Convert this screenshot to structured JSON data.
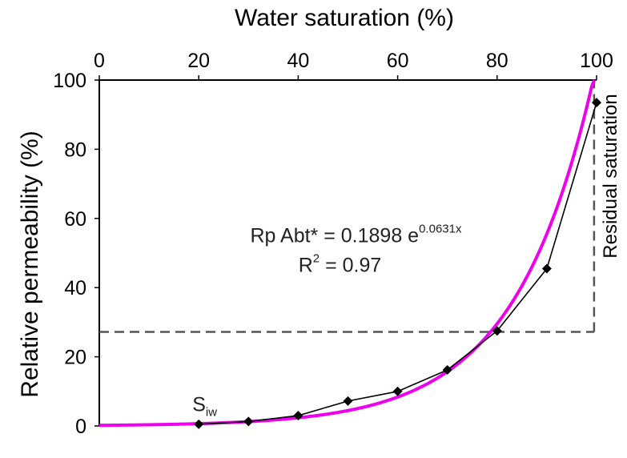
{
  "chart_data": {
    "type": "scatter",
    "title": "",
    "xlabel": "Water saturation (%)",
    "ylabel": "Relative permeability (%)",
    "x_axis_position": "top",
    "xlim": [
      0,
      100
    ],
    "ylim": [
      0,
      100
    ],
    "xticks": [
      "0",
      "20",
      "40",
      "60",
      "80",
      "100"
    ],
    "yticks": [
      "0",
      "20",
      "40",
      "60",
      "80",
      "100"
    ],
    "grid": false,
    "series": [
      {
        "style": "line-with-diamond-markers",
        "color": "#000000",
        "x": [
          20,
          30,
          40,
          50,
          60,
          70,
          80,
          90,
          100
        ],
        "y": [
          0.5,
          1.3,
          3.0,
          7.2,
          10.0,
          16.2,
          27.5,
          45.5,
          93.5
        ]
      },
      {
        "style": "fitted-curve",
        "color": "#ee00ee",
        "equation": {
          "a": 0.1898,
          "b": 0.0631
        },
        "x_range": [
          0,
          99.5
        ]
      }
    ],
    "reference_lines": [
      {
        "orientation": "horizontal",
        "y": 27.2,
        "x_from": 0,
        "x_to": 99.5,
        "style": "dashed",
        "color": "#555555"
      },
      {
        "orientation": "vertical",
        "x": 99.5,
        "y_from": 27.2,
        "y_to": 100,
        "style": "dashed",
        "color": "#555555"
      }
    ],
    "annotations": {
      "siw": {
        "main": "S",
        "sub": "iw",
        "x": 20,
        "y": 2
      },
      "equation": {
        "prefix": "Rp Abt* = 0.1898 e",
        "exponent": "0.0631x",
        "x": 50,
        "y": 55
      },
      "r2": {
        "base": "R",
        "sup": "2",
        "rest": " = 0.97",
        "x": 50,
        "y": 46
      },
      "residual": {
        "text": "Residual saturation"
      }
    }
  }
}
